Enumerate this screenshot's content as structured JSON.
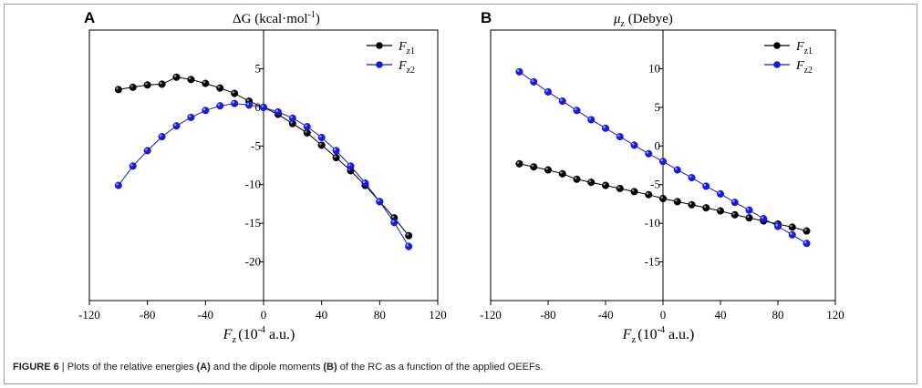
{
  "caption": {
    "label": "FIGURE 6",
    "separator": " | ",
    "t1": "Plots of the relative energies ",
    "b1": "(A)",
    "t2": " and the dipole moments ",
    "b2": "(B)",
    "t3": " of the RC as a function of the applied OEEFs."
  },
  "chart_data": [
    {
      "type": "line",
      "panel": "A",
      "title": "ΔG (kcal·mol",
      "title_sup": "-1",
      "title_end": ")",
      "xlabel": "F",
      "xlabel_sub": "z",
      "xlabel_unit": "(10",
      "xlabel_sup": "-4",
      "xlabel_end": " a.u.)",
      "xlim": [
        -120,
        120
      ],
      "ylim": [
        -25,
        10
      ],
      "xticks": [
        -120,
        -80,
        -40,
        0,
        40,
        80,
        120
      ],
      "yticks": [
        5,
        0,
        -5,
        -10,
        -15,
        -20
      ],
      "grid": false,
      "legend_position": "top-right",
      "x": [
        -100,
        -90,
        -80,
        -70,
        -60,
        -50,
        -40,
        -30,
        -20,
        -10,
        0,
        10,
        20,
        30,
        40,
        50,
        60,
        70,
        80,
        90,
        100
      ],
      "series": [
        {
          "name": "F",
          "name_sub": "z1",
          "color": "#000000",
          "values": [
            2.3,
            2.6,
            2.9,
            3.0,
            3.9,
            3.6,
            3.1,
            2.5,
            1.8,
            0.8,
            0.0,
            -0.9,
            -2.1,
            -3.3,
            -4.9,
            -6.5,
            -8.2,
            -10.1,
            -12.2,
            -14.3,
            -16.6
          ]
        },
        {
          "name": "F",
          "name_sub": "z2",
          "color": "#1a1adf",
          "values": [
            -10.1,
            -7.6,
            -5.6,
            -3.8,
            -2.4,
            -1.3,
            -0.4,
            0.2,
            0.5,
            0.3,
            0.0,
            -0.6,
            -1.4,
            -2.5,
            -3.9,
            -5.6,
            -7.6,
            -9.8,
            -12.2,
            -14.9,
            -18.0
          ]
        }
      ]
    },
    {
      "type": "line",
      "panel": "B",
      "title": "μ",
      "title_sub": "z",
      "title_end": " (Debye)",
      "xlabel": "F",
      "xlabel_sub": "z",
      "xlabel_unit": "(10",
      "xlabel_sup": "-4",
      "xlabel_end": " a.u.)",
      "xlim": [
        -120,
        120
      ],
      "ylim": [
        -20,
        15
      ],
      "xticks": [
        -120,
        -80,
        -40,
        0,
        40,
        80,
        120
      ],
      "yticks": [
        10,
        5,
        0,
        -5,
        -10,
        -15
      ],
      "grid": false,
      "legend_position": "top-right",
      "x": [
        -100,
        -90,
        -80,
        -70,
        -60,
        -50,
        -40,
        -30,
        -20,
        -10,
        0,
        10,
        20,
        30,
        40,
        50,
        60,
        70,
        80,
        90,
        100
      ],
      "series": [
        {
          "name": "F",
          "name_sub": "z1",
          "color": "#000000",
          "values": [
            -2.3,
            -2.7,
            -3.1,
            -3.6,
            -4.3,
            -4.7,
            -5.1,
            -5.5,
            -5.9,
            -6.3,
            -6.8,
            -7.2,
            -7.6,
            -8.0,
            -8.4,
            -8.9,
            -9.3,
            -9.7,
            -10.1,
            -10.5,
            -11.0
          ]
        },
        {
          "name": "F",
          "name_sub": "z2",
          "color": "#1a1adf",
          "values": [
            9.6,
            8.3,
            7.0,
            5.8,
            4.6,
            3.4,
            2.3,
            1.2,
            0.1,
            -1.0,
            -2.0,
            -3.1,
            -4.1,
            -5.2,
            -6.2,
            -7.3,
            -8.3,
            -9.4,
            -10.4,
            -11.5,
            -12.6
          ]
        }
      ]
    }
  ]
}
